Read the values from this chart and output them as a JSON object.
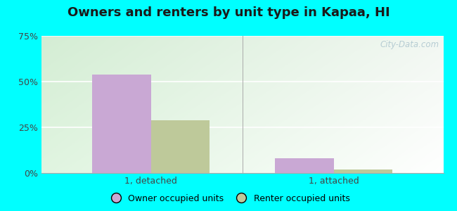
{
  "title": "Owners and renters by unit type in Kapaa, HI",
  "categories": [
    "1, detached",
    "1, attached"
  ],
  "owner_values": [
    54.0,
    8.0
  ],
  "renter_values": [
    29.0,
    2.0
  ],
  "owner_color": "#c9a8d4",
  "renter_color": "#bec99a",
  "ylim": [
    0,
    75
  ],
  "yticks": [
    0,
    25,
    50,
    75
  ],
  "yticklabels": [
    "0%",
    "25%",
    "50%",
    "75%"
  ],
  "bar_width": 0.32,
  "outer_bg": "#00ffff",
  "legend_owner": "Owner occupied units",
  "legend_renter": "Renter occupied units",
  "watermark": "City-Data.com",
  "title_fontsize": 13,
  "tick_fontsize": 9,
  "legend_fontsize": 9
}
